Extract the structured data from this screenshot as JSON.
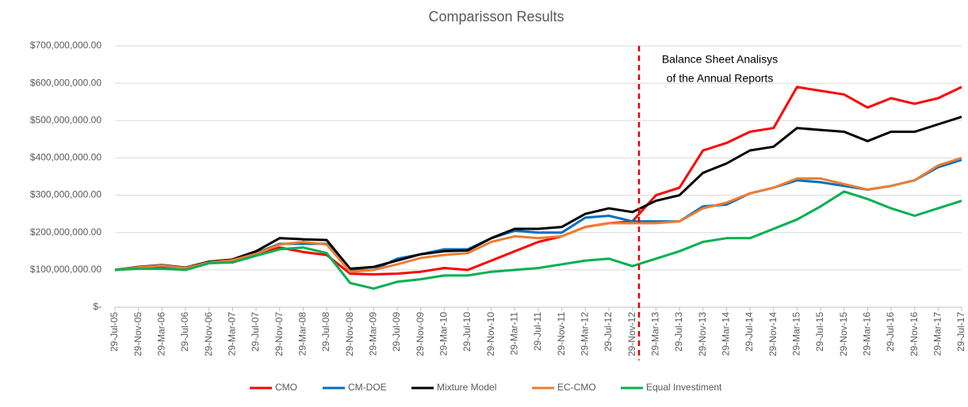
{
  "chart_data": {
    "type": "line",
    "title": "Comparisson Results",
    "annotation": [
      "Balance Sheet Analisys",
      "of the Annual Reports"
    ],
    "categories": [
      "29-Jul-05",
      "29-Nov-05",
      "29-Mar-06",
      "29-Jul-06",
      "29-Nov-06",
      "29-Mar-07",
      "29-Jul-07",
      "29-Nov-07",
      "29-Mar-08",
      "29-Jul-08",
      "29-Nov-08",
      "29-Mar-09",
      "29-Jul-09",
      "29-Nov-09",
      "29-Mar-10",
      "29-Jul-10",
      "29-Nov-10",
      "29-Mar-11",
      "29-Jul-11",
      "29-Nov-11",
      "29-Mar-12",
      "29-Jul-12",
      "29-Nov-12",
      "29-Mar-13",
      "29-Jul-13",
      "29-Nov-13",
      "29-Mar-14",
      "29-Jul-14",
      "29-Nov-14",
      "29-Mar-15",
      "29-Jul-15",
      "29-Nov-15",
      "29-Mar-16",
      "29-Jul-16",
      "29-Nov-16",
      "29-Mar-17",
      "29-Jul-17"
    ],
    "series": [
      {
        "name": "CMO",
        "color": "#ff0000",
        "values": [
          100000000,
          108000000,
          110000000,
          103000000,
          120000000,
          120000000,
          140000000,
          160000000,
          148000000,
          140000000,
          90000000,
          88000000,
          90000000,
          95000000,
          105000000,
          100000000,
          125000000,
          150000000,
          175000000,
          190000000,
          215000000,
          225000000,
          230000000,
          300000000,
          320000000,
          420000000,
          440000000,
          470000000,
          480000000,
          590000000,
          580000000,
          570000000,
          535000000,
          560000000,
          545000000,
          560000000,
          590000000
        ]
      },
      {
        "name": "CM-DOE",
        "color": "#0070c0",
        "values": [
          100000000,
          105000000,
          108000000,
          103000000,
          122000000,
          125000000,
          145000000,
          170000000,
          170000000,
          170000000,
          98000000,
          100000000,
          130000000,
          142000000,
          155000000,
          155000000,
          185000000,
          205000000,
          200000000,
          200000000,
          240000000,
          245000000,
          230000000,
          230000000,
          230000000,
          270000000,
          275000000,
          305000000,
          320000000,
          340000000,
          335000000,
          325000000,
          315000000,
          325000000,
          340000000,
          375000000,
          395000000
        ]
      },
      {
        "name": "Mixture Model",
        "color": "#000000",
        "values": [
          100000000,
          108000000,
          113000000,
          106000000,
          122000000,
          128000000,
          150000000,
          185000000,
          182000000,
          180000000,
          103000000,
          108000000,
          125000000,
          142000000,
          150000000,
          152000000,
          185000000,
          210000000,
          210000000,
          215000000,
          250000000,
          265000000,
          255000000,
          285000000,
          300000000,
          360000000,
          385000000,
          420000000,
          430000000,
          480000000,
          475000000,
          470000000,
          445000000,
          470000000,
          470000000,
          490000000,
          510000000
        ]
      },
      {
        "name": "EC-CMO",
        "color": "#ed7d31",
        "values": [
          100000000,
          107000000,
          112000000,
          105000000,
          120000000,
          126000000,
          143000000,
          168000000,
          175000000,
          168000000,
          95000000,
          100000000,
          115000000,
          132000000,
          140000000,
          145000000,
          175000000,
          190000000,
          185000000,
          190000000,
          215000000,
          225000000,
          225000000,
          225000000,
          230000000,
          265000000,
          280000000,
          305000000,
          320000000,
          345000000,
          345000000,
          330000000,
          315000000,
          325000000,
          340000000,
          380000000,
          400000000
        ]
      },
      {
        "name": "Equal Investiment",
        "color": "#00b050",
        "values": [
          100000000,
          103000000,
          103000000,
          100000000,
          118000000,
          120000000,
          138000000,
          155000000,
          160000000,
          145000000,
          65000000,
          50000000,
          68000000,
          75000000,
          85000000,
          85000000,
          95000000,
          100000000,
          105000000,
          115000000,
          125000000,
          130000000,
          110000000,
          130000000,
          150000000,
          175000000,
          185000000,
          185000000,
          210000000,
          235000000,
          270000000,
          310000000,
          290000000,
          265000000,
          245000000,
          265000000,
          285000000
        ]
      }
    ],
    "ylim": [
      0,
      700000000
    ],
    "yticks": [
      {
        "value": 0,
        "label": "$-"
      },
      {
        "value": 100000000,
        "label": "$100,000,000.00"
      },
      {
        "value": 200000000,
        "label": "$200,000,000.00"
      },
      {
        "value": 300000000,
        "label": "$300,000,000.00"
      },
      {
        "value": 400000000,
        "label": "$400,000,000.00"
      },
      {
        "value": 500000000,
        "label": "$500,000,000.00"
      },
      {
        "value": 600000000,
        "label": "$600,000,000.00"
      },
      {
        "value": 700000000,
        "label": "$700,000,000.00"
      }
    ],
    "grid": true,
    "legend": "bottom"
  }
}
